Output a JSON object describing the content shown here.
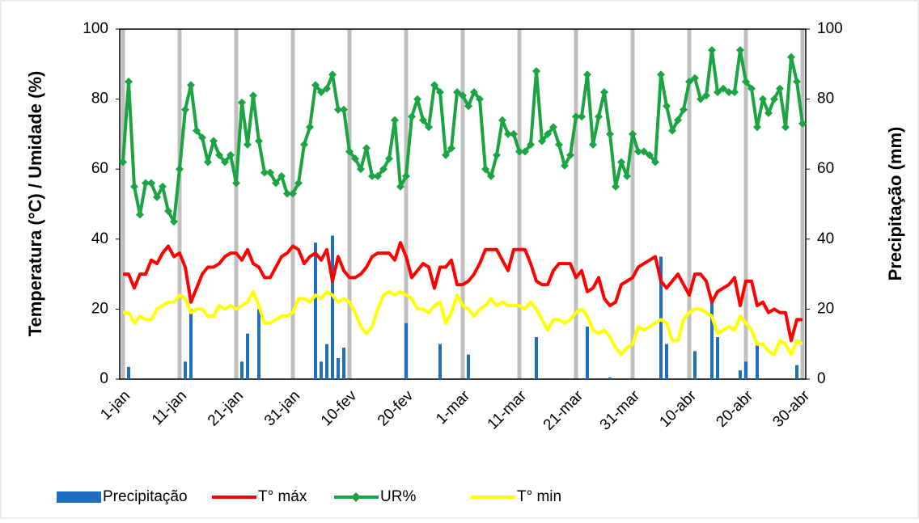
{
  "chart_data": {
    "type": "combo",
    "y_label": "Temperatura (°C) / Umidade (%)",
    "y2_label": "Precipitação (mm)",
    "categories": [
      "1-jan",
      null,
      null,
      null,
      null,
      null,
      null,
      null,
      null,
      null,
      "11-jan",
      null,
      null,
      null,
      null,
      null,
      null,
      null,
      null,
      null,
      "21-jan",
      null,
      null,
      null,
      null,
      null,
      null,
      null,
      null,
      null,
      "31-jan",
      null,
      null,
      null,
      null,
      null,
      null,
      null,
      null,
      null,
      "10-fev",
      null,
      null,
      null,
      null,
      null,
      null,
      null,
      null,
      null,
      "20-fev",
      null,
      null,
      null,
      null,
      null,
      null,
      null,
      null,
      null,
      "1-mar",
      null,
      null,
      null,
      null,
      null,
      null,
      null,
      null,
      null,
      "11-mar",
      null,
      null,
      null,
      null,
      null,
      null,
      null,
      null,
      null,
      "21-mar",
      null,
      null,
      null,
      null,
      null,
      null,
      null,
      null,
      null,
      "31-mar",
      null,
      null,
      null,
      null,
      null,
      null,
      null,
      null,
      null,
      "10-abr",
      null,
      null,
      null,
      null,
      null,
      null,
      null,
      null,
      null,
      "20-abr",
      null,
      null,
      null,
      null,
      null,
      null,
      null,
      null,
      null,
      "30-abr"
    ],
    "ylim": [
      0,
      100
    ],
    "yticks": [
      0,
      20,
      40,
      60,
      80,
      100
    ],
    "y2lim": [
      0,
      100
    ],
    "y2ticks": [
      0,
      20,
      40,
      60,
      80,
      100
    ],
    "grid": true,
    "legend": "bottom",
    "series": [
      {
        "name": "Precipitação",
        "type": "bar",
        "axis": "y2",
        "color": "#1f6fc1",
        "values": [
          0,
          3.5,
          0,
          0,
          0,
          0,
          0,
          0,
          0,
          0,
          0,
          5,
          20,
          0,
          0,
          0,
          0,
          0,
          0,
          0,
          0,
          5,
          13,
          0,
          20,
          0,
          0,
          0,
          0,
          0,
          0,
          0,
          0,
          0,
          39,
          5,
          10,
          41,
          6,
          9,
          0,
          0,
          0,
          0,
          0,
          0,
          0,
          0,
          0,
          0,
          16,
          0,
          0,
          0,
          0,
          0,
          10,
          0,
          0,
          0,
          0,
          7,
          0,
          0,
          0,
          0,
          0,
          0,
          0,
          0,
          0,
          0,
          0,
          12,
          0,
          0,
          0,
          0,
          0,
          0,
          0,
          0,
          15,
          0,
          0,
          0,
          0.5,
          0,
          0,
          0,
          0,
          0,
          0,
          0,
          0,
          35,
          10,
          0,
          0,
          0,
          0,
          8,
          0,
          0,
          23,
          12,
          0,
          0,
          0,
          2.5,
          5,
          0,
          10,
          0,
          0,
          0,
          0,
          0,
          0,
          4,
          0
        ]
      },
      {
        "name": "T° máx",
        "type": "line",
        "color": "#ff0000",
        "values": [
          30,
          30,
          26,
          30,
          30,
          34,
          33,
          36,
          38,
          35,
          36,
          32,
          22,
          26,
          30,
          32,
          32,
          33,
          35,
          36,
          36,
          34,
          37,
          33,
          32,
          29,
          29,
          32,
          35,
          36,
          38,
          37,
          33,
          35,
          36,
          34,
          37,
          28,
          35,
          31,
          29,
          29,
          30,
          32,
          35,
          36,
          36,
          36,
          34,
          39,
          35,
          29,
          31,
          33,
          32,
          26,
          32,
          32,
          34,
          27,
          27,
          28,
          30,
          33,
          37,
          37,
          37,
          34,
          31,
          37,
          37,
          37,
          33,
          28,
          27,
          27,
          31,
          33,
          33,
          33,
          29,
          31,
          25,
          26,
          29,
          23,
          21,
          22,
          27,
          28,
          29,
          32,
          33,
          34,
          35,
          28,
          26,
          28,
          30,
          27,
          24,
          30,
          30,
          28,
          22,
          25,
          26,
          27,
          29,
          21,
          28,
          28,
          21,
          22,
          19,
          20,
          19,
          19,
          11,
          17,
          17
        ]
      },
      {
        "name": "UR%",
        "type": "line",
        "marker": "diamond",
        "color": "#1aa542",
        "values": [
          62,
          85,
          55,
          47,
          56,
          56,
          52,
          55,
          48,
          45,
          60,
          77,
          84,
          71,
          69,
          62,
          68,
          64,
          62,
          64,
          56,
          79,
          67,
          81,
          68,
          59,
          59,
          56,
          58,
          53,
          53,
          56,
          67,
          72,
          84,
          82,
          83,
          87,
          77,
          77,
          65,
          63,
          60,
          66,
          58,
          58,
          60,
          63,
          74,
          55,
          58,
          75,
          80,
          74,
          72,
          84,
          82,
          64,
          66,
          82,
          81,
          78,
          82,
          80,
          60,
          58,
          64,
          74,
          70,
          70,
          65,
          65,
          67,
          88,
          68,
          70,
          72,
          67,
          61,
          64,
          75,
          75,
          87,
          67,
          75,
          82,
          70,
          55,
          62,
          58,
          70,
          65,
          65,
          64,
          62,
          87,
          78,
          71,
          74,
          77,
          85,
          86,
          80,
          81,
          94,
          82,
          83,
          82,
          82,
          94,
          85,
          83,
          72,
          80,
          76,
          80,
          83,
          72,
          92,
          85,
          73
        ]
      },
      {
        "name": "T° min",
        "type": "line",
        "color": "#ffff00",
        "values": [
          19,
          19,
          16,
          18,
          17,
          17,
          20,
          21,
          22,
          22,
          24,
          23,
          19,
          20,
          20,
          18,
          18,
          21,
          20,
          21,
          20,
          21,
          22,
          25,
          21,
          16,
          16,
          17,
          18,
          18,
          19,
          23,
          23,
          22,
          24,
          23,
          25,
          24,
          22,
          23,
          22,
          19,
          15,
          13,
          15,
          20,
          24,
          25,
          24,
          25,
          24,
          23,
          20,
          20,
          19,
          21,
          22,
          16,
          19,
          24,
          21,
          20,
          18,
          20,
          21,
          23,
          21,
          22,
          21,
          21,
          21,
          20,
          22,
          20,
          17,
          14,
          17,
          17,
          16,
          17,
          19,
          20,
          18,
          14,
          13,
          14,
          12,
          9,
          7,
          9,
          10,
          15,
          14,
          15,
          16,
          17,
          16,
          11,
          11,
          17,
          19,
          20,
          20,
          19,
          18,
          13,
          14,
          15,
          14,
          18,
          16,
          14,
          10,
          10,
          8,
          7,
          11,
          10,
          7,
          11,
          10
        ]
      }
    ]
  }
}
